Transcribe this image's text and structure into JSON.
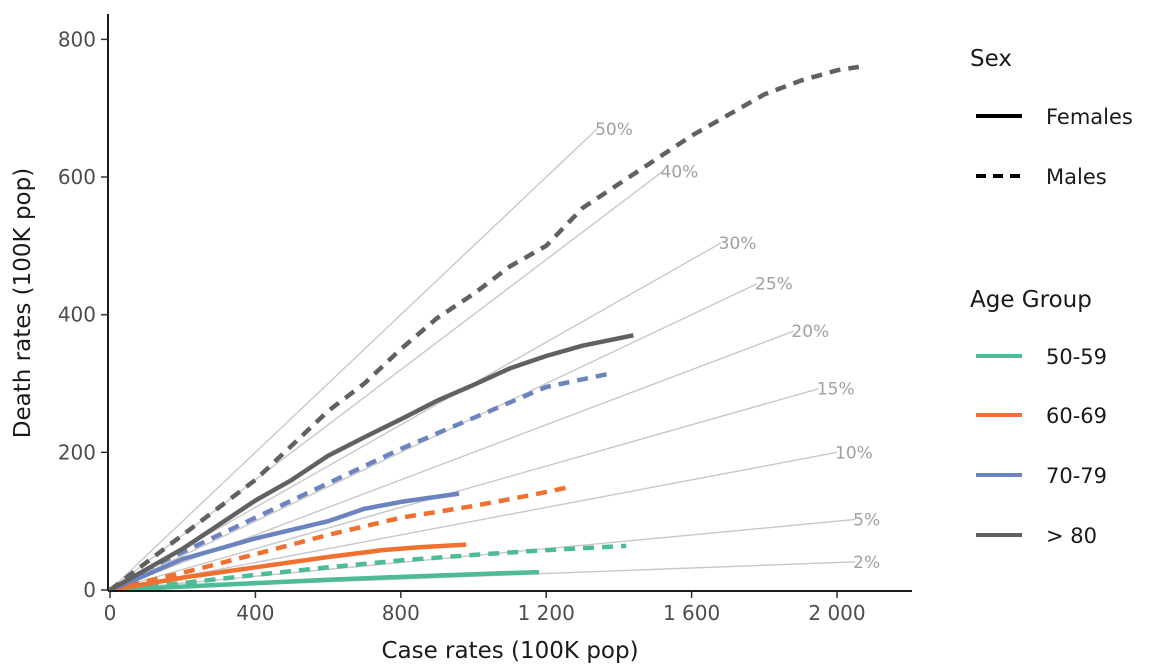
{
  "chart_data": {
    "type": "line",
    "xlabel": "Case rates (100K pop)",
    "ylabel": "Death rates (100K pop)",
    "xlim": [
      0,
      2150
    ],
    "ylim": [
      0,
      820
    ],
    "x_ticks": [
      0,
      400,
      800,
      1200,
      1600,
      2000
    ],
    "x_tick_labels": [
      "0",
      "400",
      "800",
      "1 200",
      "1 600",
      "2 000"
    ],
    "y_ticks": [
      0,
      200,
      400,
      600,
      800
    ],
    "y_tick_labels": [
      "0",
      "200",
      "400",
      "600",
      "800"
    ],
    "grid": false,
    "reference_lines": [
      {
        "label": "50%",
        "ratio": 0.5,
        "x_end": 1340
      },
      {
        "label": "40%",
        "ratio": 0.4,
        "x_end": 1520
      },
      {
        "label": "30%",
        "ratio": 0.3,
        "x_end": 1680
      },
      {
        "label": "25%",
        "ratio": 0.25,
        "x_end": 1780
      },
      {
        "label": "20%",
        "ratio": 0.2,
        "x_end": 1880
      },
      {
        "label": "15%",
        "ratio": 0.15,
        "x_end": 1950
      },
      {
        "label": "10%",
        "ratio": 0.1,
        "x_end": 2000
      },
      {
        "label": "5%",
        "ratio": 0.05,
        "x_end": 2050
      },
      {
        "label": "2%",
        "ratio": 0.02,
        "x_end": 2050
      }
    ],
    "series": [
      {
        "name": "Females",
        "age_group": "50-59",
        "sex": "Females",
        "color": "#4dbb95",
        "points": [
          [
            0,
            0
          ],
          [
            200,
            5
          ],
          [
            400,
            10
          ],
          [
            600,
            15
          ],
          [
            800,
            19
          ],
          [
            1000,
            23
          ],
          [
            1180,
            26
          ]
        ]
      },
      {
        "name": "Males",
        "age_group": "50-59",
        "sex": "Males",
        "color": "#4dbb95",
        "points": [
          [
            0,
            0
          ],
          [
            200,
            10
          ],
          [
            400,
            22
          ],
          [
            600,
            33
          ],
          [
            800,
            43
          ],
          [
            1000,
            51
          ],
          [
            1200,
            58
          ],
          [
            1420,
            64
          ]
        ]
      },
      {
        "name": "Females",
        "age_group": "60-69",
        "sex": "Females",
        "color": "#f07030",
        "points": [
          [
            0,
            0
          ],
          [
            200,
            18
          ],
          [
            400,
            33
          ],
          [
            600,
            48
          ],
          [
            750,
            58
          ],
          [
            850,
            62
          ],
          [
            980,
            66
          ]
        ]
      },
      {
        "name": "Males",
        "age_group": "60-69",
        "sex": "Males",
        "color": "#f07030",
        "points": [
          [
            0,
            0
          ],
          [
            200,
            25
          ],
          [
            400,
            52
          ],
          [
            600,
            80
          ],
          [
            800,
            105
          ],
          [
            1000,
            122
          ],
          [
            1150,
            137
          ],
          [
            1260,
            149
          ]
        ]
      },
      {
        "name": "Females",
        "age_group": "70-79",
        "sex": "Females",
        "color": "#6b84bf",
        "points": [
          [
            0,
            0
          ],
          [
            100,
            22
          ],
          [
            200,
            45
          ],
          [
            400,
            75
          ],
          [
            600,
            100
          ],
          [
            700,
            118
          ],
          [
            800,
            128
          ],
          [
            960,
            140
          ]
        ]
      },
      {
        "name": "Males",
        "age_group": "70-79",
        "sex": "Males",
        "color": "#6b84bf",
        "points": [
          [
            0,
            0
          ],
          [
            100,
            30
          ],
          [
            200,
            55
          ],
          [
            400,
            105
          ],
          [
            600,
            155
          ],
          [
            800,
            205
          ],
          [
            1000,
            250
          ],
          [
            1200,
            295
          ],
          [
            1380,
            315
          ]
        ]
      },
      {
        "name": "Females",
        "age_group": "> 80",
        "sex": "Females",
        "color": "#616161",
        "points": [
          [
            0,
            0
          ],
          [
            100,
            30
          ],
          [
            200,
            60
          ],
          [
            300,
            95
          ],
          [
            400,
            130
          ],
          [
            500,
            160
          ],
          [
            600,
            195
          ],
          [
            700,
            222
          ],
          [
            800,
            248
          ],
          [
            900,
            275
          ],
          [
            1000,
            298
          ],
          [
            1100,
            322
          ],
          [
            1200,
            340
          ],
          [
            1300,
            355
          ],
          [
            1440,
            370
          ]
        ]
      },
      {
        "name": "Males",
        "age_group": "> 80",
        "sex": "Males",
        "color": "#616161",
        "points": [
          [
            0,
            0
          ],
          [
            100,
            40
          ],
          [
            200,
            80
          ],
          [
            400,
            160
          ],
          [
            500,
            210
          ],
          [
            600,
            260
          ],
          [
            700,
            300
          ],
          [
            800,
            350
          ],
          [
            900,
            395
          ],
          [
            1000,
            430
          ],
          [
            1100,
            470
          ],
          [
            1200,
            500
          ],
          [
            1300,
            555
          ],
          [
            1400,
            590
          ],
          [
            1500,
            625
          ],
          [
            1600,
            660
          ],
          [
            1700,
            690
          ],
          [
            1800,
            720
          ],
          [
            1900,
            740
          ],
          [
            2000,
            755
          ],
          [
            2060,
            760
          ]
        ]
      }
    ],
    "legend": {
      "position": "right",
      "sex": {
        "title": "Sex",
        "items": [
          {
            "label": "Females",
            "style": "solid"
          },
          {
            "label": "Males",
            "style": "dashed"
          }
        ]
      },
      "age": {
        "title": "Age Group",
        "items": [
          {
            "label": "50-59",
            "color": "#4dbb95"
          },
          {
            "label": "60-69",
            "color": "#f07030"
          },
          {
            "label": "70-79",
            "color": "#6b84bf"
          },
          {
            "label": "> 80",
            "color": "#616161"
          }
        ]
      }
    }
  }
}
